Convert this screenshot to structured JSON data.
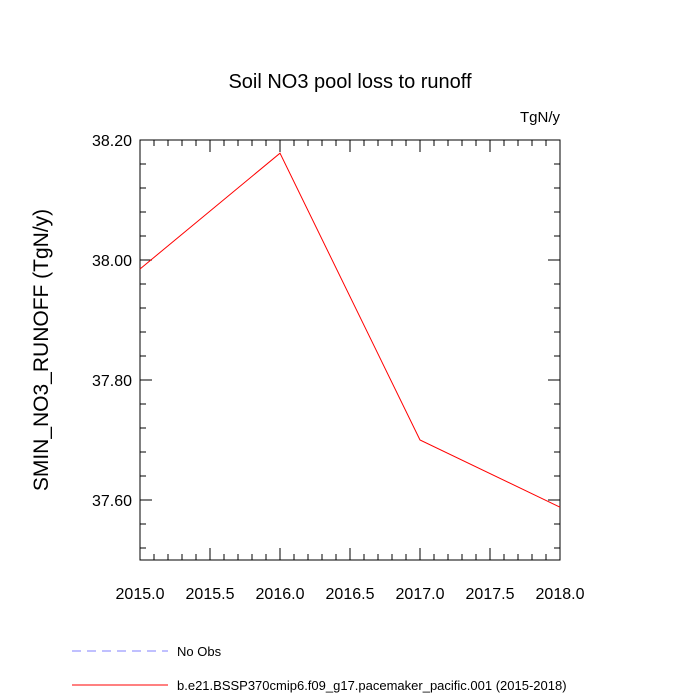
{
  "chart_data": {
    "type": "line",
    "title": "Soil NO3 pool loss to runoff",
    "units": "TgN/y",
    "ylabel": "SMIN_NO3_RUNOFF  (TgN/y)",
    "xlabel": "",
    "xlim": [
      2015.0,
      2018.0
    ],
    "ylim": [
      37.5,
      38.2
    ],
    "x_ticks": [
      2015.0,
      2015.5,
      2016.0,
      2016.5,
      2017.0,
      2017.5,
      2018.0
    ],
    "x_tick_labels": [
      "2015.0",
      "2015.5",
      "2016.0",
      "2016.5",
      "2017.0",
      "2017.5",
      "2018.0"
    ],
    "y_ticks": [
      37.6,
      37.8,
      38.0,
      38.2
    ],
    "y_tick_labels": [
      "37.60",
      "37.80",
      "38.00",
      "38.20"
    ],
    "grid": false,
    "legend_placement": "bottom",
    "series": [
      {
        "name": "b.e21.BSSP370cmip6.f09_g17.pacemaker_pacific.001 (2015-2018)",
        "color": "#ff0000",
        "x": [
          2015.0,
          2016.0,
          2017.0,
          2018.0
        ],
        "values": [
          37.985,
          38.178,
          37.7,
          37.588
        ]
      }
    ],
    "legend": [
      {
        "label": "No Obs",
        "color": "#8080ff",
        "style": "dashed"
      },
      {
        "label": "b.e21.BSSP370cmip6.f09_g17.pacemaker_pacific.001 (2015-2018)",
        "color": "#ff0000",
        "style": "solid"
      }
    ]
  }
}
